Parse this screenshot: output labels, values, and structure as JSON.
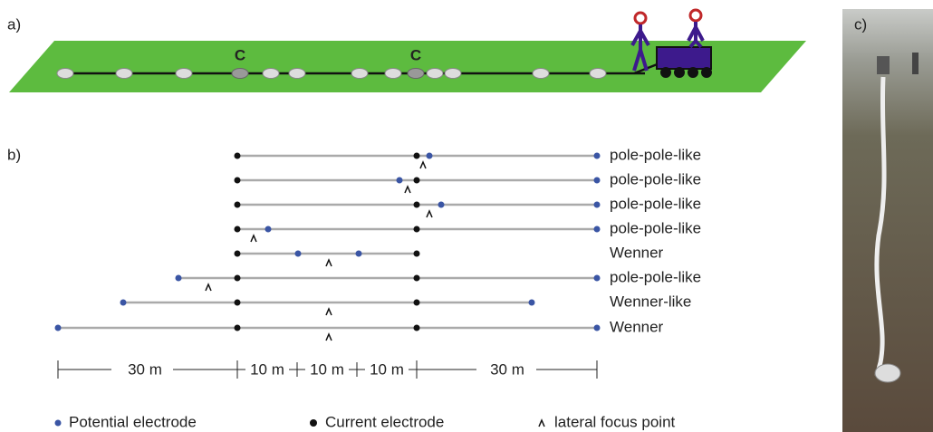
{
  "panel_a": {
    "label": "a)",
    "electrode_labels": [
      "C",
      "C"
    ]
  },
  "panel_b": {
    "label": "b)",
    "configurations": [
      "pole-pole-like",
      "pole-pole-like",
      "pole-pole-like",
      "pole-pole-like",
      "Wenner",
      "pole-pole-like",
      "Wenner-like",
      "Wenner"
    ],
    "scale": [
      "30 m",
      "10 m",
      "10 m",
      "10 m",
      "30 m"
    ],
    "legend": [
      "Potential electrode",
      "Current electrode",
      "lateral focus point"
    ]
  },
  "panel_c": {
    "label": "c)"
  }
}
